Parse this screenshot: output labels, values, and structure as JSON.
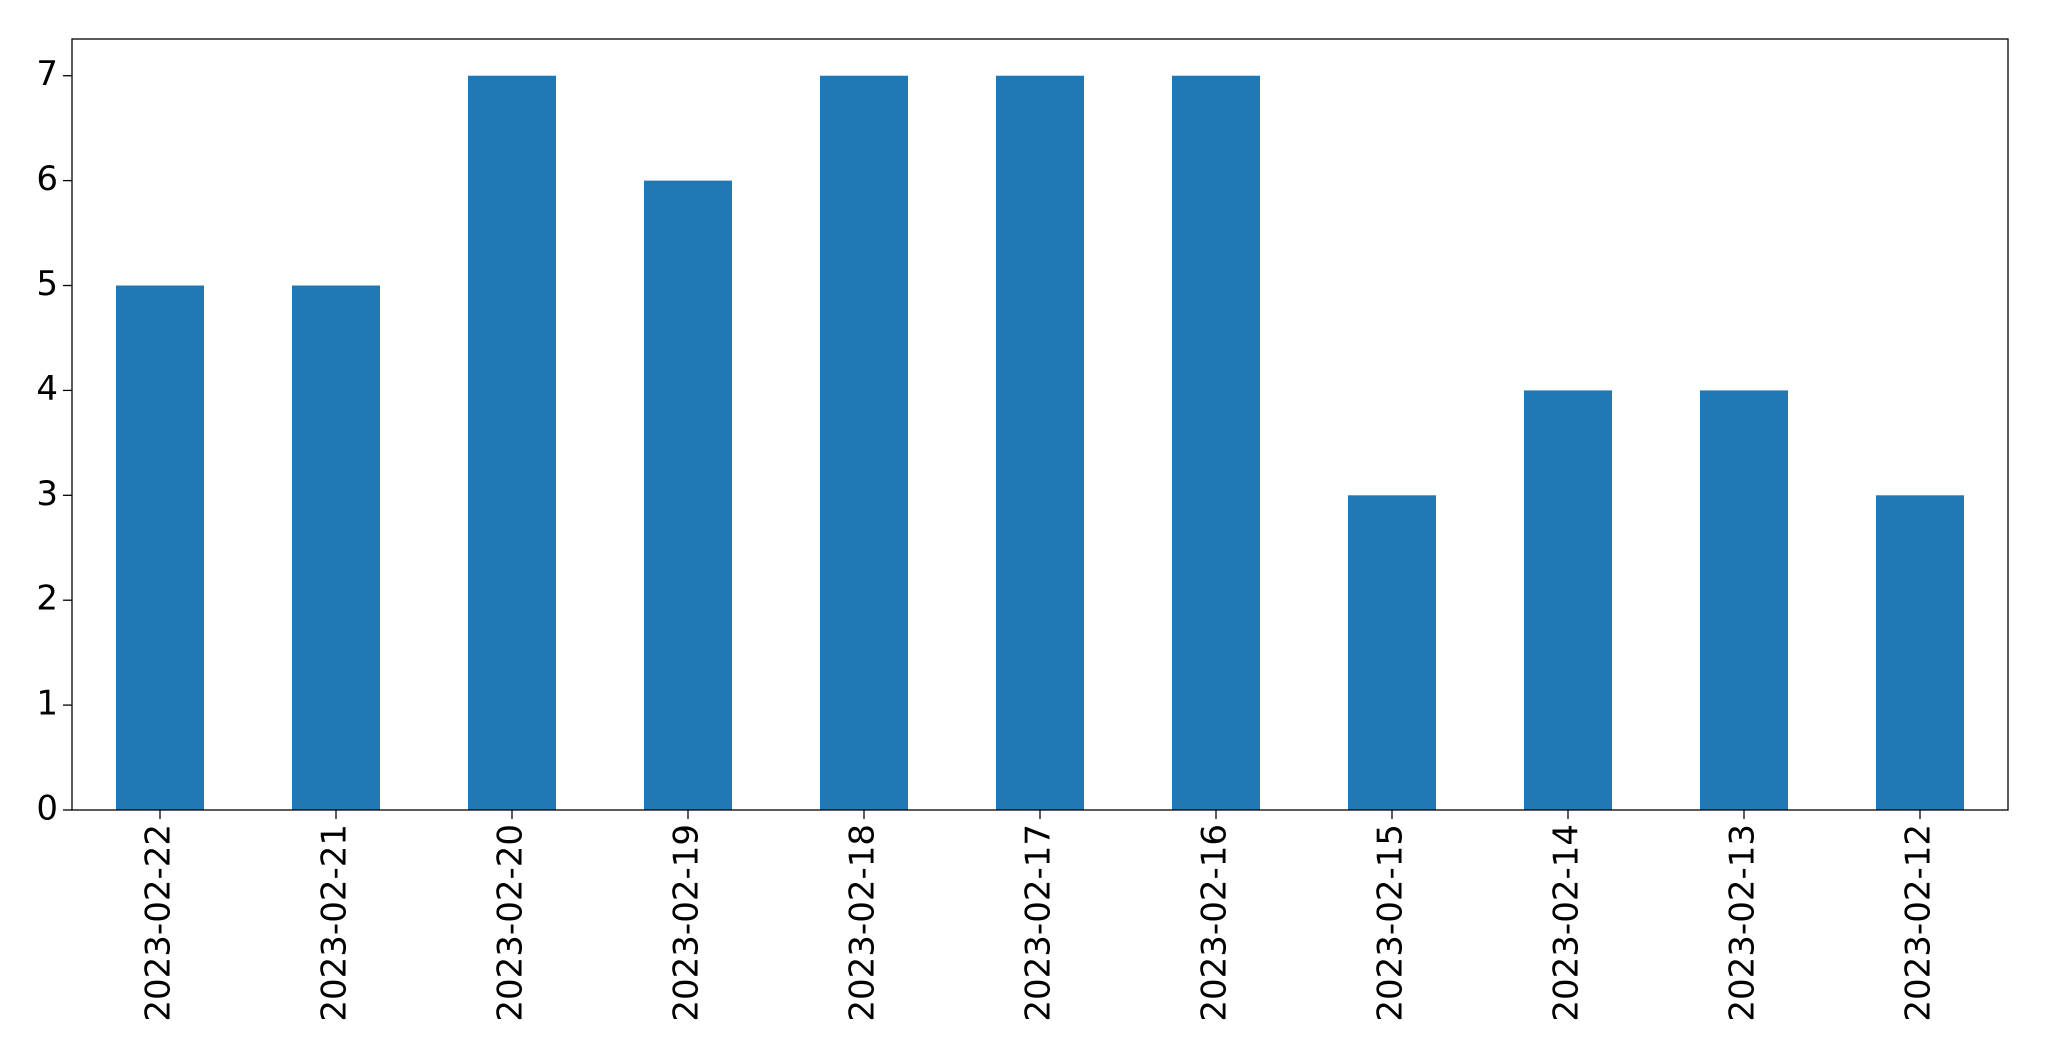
{
  "chart_data": {
    "type": "bar",
    "categories": [
      "2023-02-22",
      "2023-02-21",
      "2023-02-20",
      "2023-02-19",
      "2023-02-18",
      "2023-02-17",
      "2023-02-16",
      "2023-02-15",
      "2023-02-14",
      "2023-02-13",
      "2023-02-12"
    ],
    "values": [
      5,
      5,
      7,
      6,
      7,
      7,
      7,
      3,
      4,
      4,
      3
    ],
    "color": "#1f77b4",
    "ylim": [
      0,
      7.35
    ],
    "yticks": [
      0,
      1,
      2,
      3,
      4,
      5,
      6,
      7
    ],
    "grid": false
  }
}
